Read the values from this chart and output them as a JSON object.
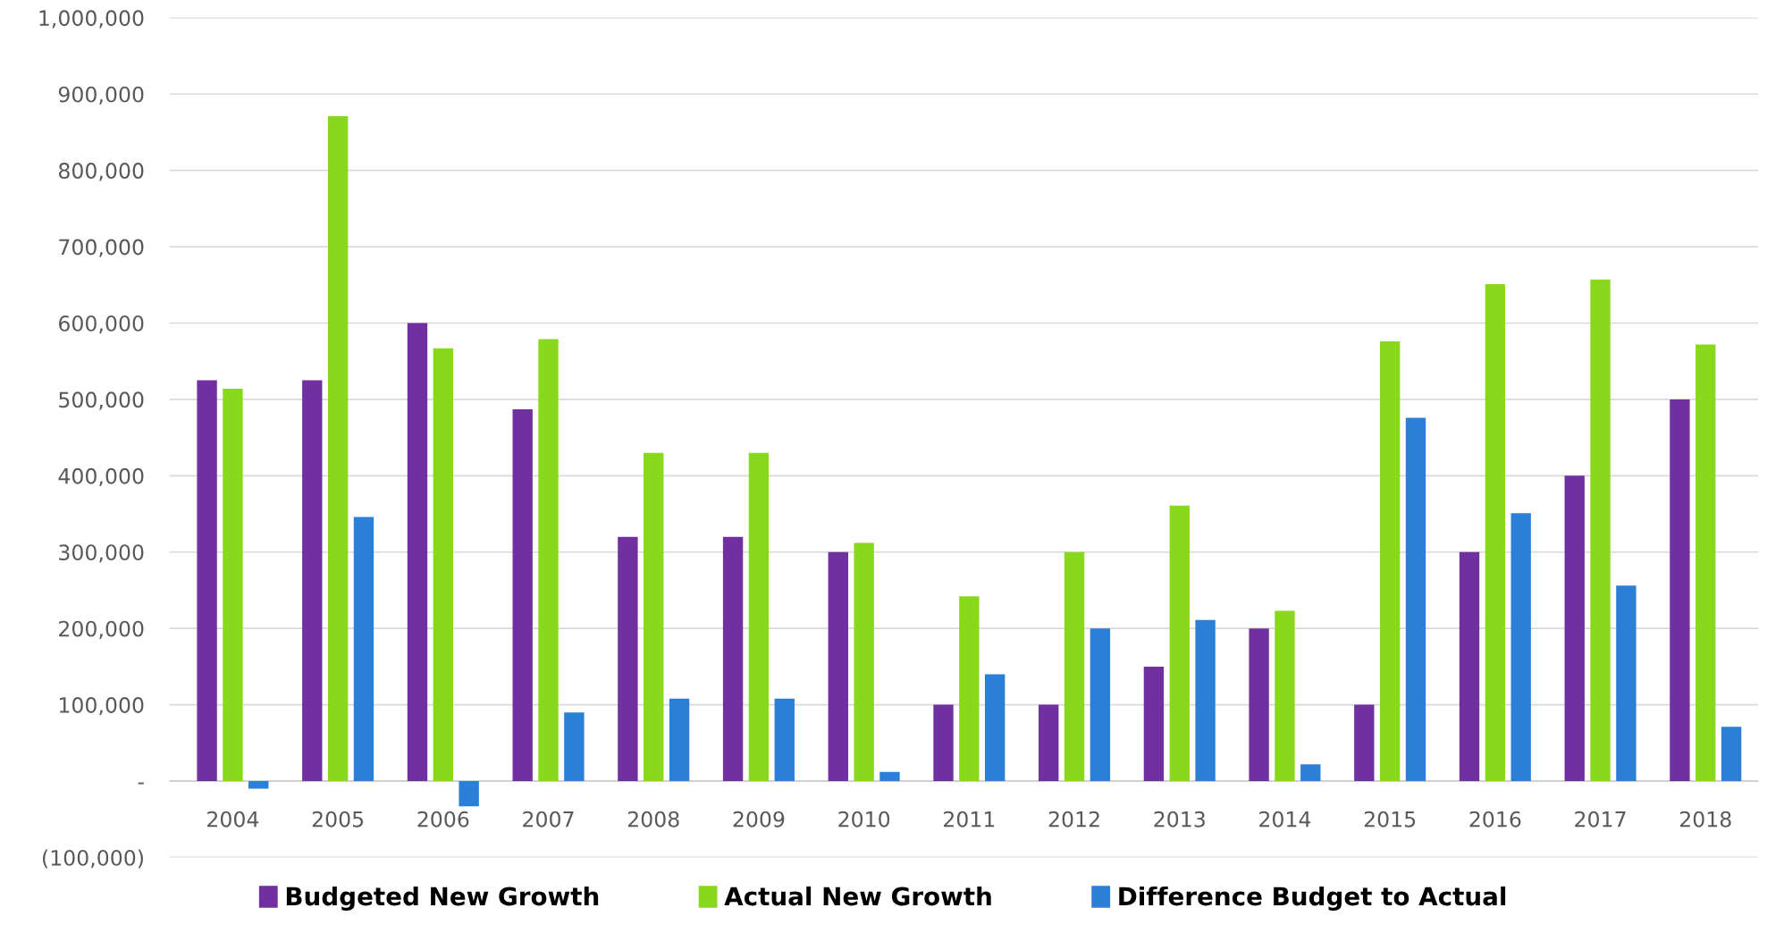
{
  "chart_data": {
    "type": "bar",
    "categories": [
      "2004",
      "2005",
      "2006",
      "2007",
      "2008",
      "2009",
      "2010",
      "2011",
      "2012",
      "2013",
      "2014",
      "2015",
      "2016",
      "2017",
      "2018"
    ],
    "series": [
      {
        "name": "Budgeted New Growth",
        "color": "#7030a0",
        "values": [
          525000,
          525000,
          600000,
          487000,
          320000,
          320000,
          300000,
          100000,
          100000,
          150000,
          200000,
          100000,
          300000,
          400000,
          500000
        ]
      },
      {
        "name": "Actual New Growth",
        "color": "#88d81c",
        "values": [
          514000,
          871000,
          567000,
          579000,
          430000,
          430000,
          312000,
          242000,
          300000,
          361000,
          223000,
          576000,
          651000,
          657000,
          572000
        ]
      },
      {
        "name": "Difference Budget to Actual",
        "color": "#2b7fd6",
        "values": [
          -10000,
          346000,
          -33000,
          90000,
          108000,
          108000,
          12000,
          140000,
          200000,
          211000,
          22000,
          476000,
          351000,
          256000,
          71000
        ]
      }
    ],
    "ylim": [
      -100000,
      1000000
    ],
    "yticks": [
      {
        "value": -100000,
        "label": "(100,000)"
      },
      {
        "value": 0,
        "label": "-"
      },
      {
        "value": 100000,
        "label": "100,000"
      },
      {
        "value": 200000,
        "label": "200,000"
      },
      {
        "value": 300000,
        "label": "300,000"
      },
      {
        "value": 400000,
        "label": "400,000"
      },
      {
        "value": 500000,
        "label": "500,000"
      },
      {
        "value": 600000,
        "label": "600,000"
      },
      {
        "value": 700000,
        "label": "700,000"
      },
      {
        "value": 800000,
        "label": "800,000"
      },
      {
        "value": 900000,
        "label": "900,000"
      },
      {
        "value": 1000000,
        "label": "1,000,000"
      }
    ],
    "grid": "y",
    "legend": "bottom"
  }
}
